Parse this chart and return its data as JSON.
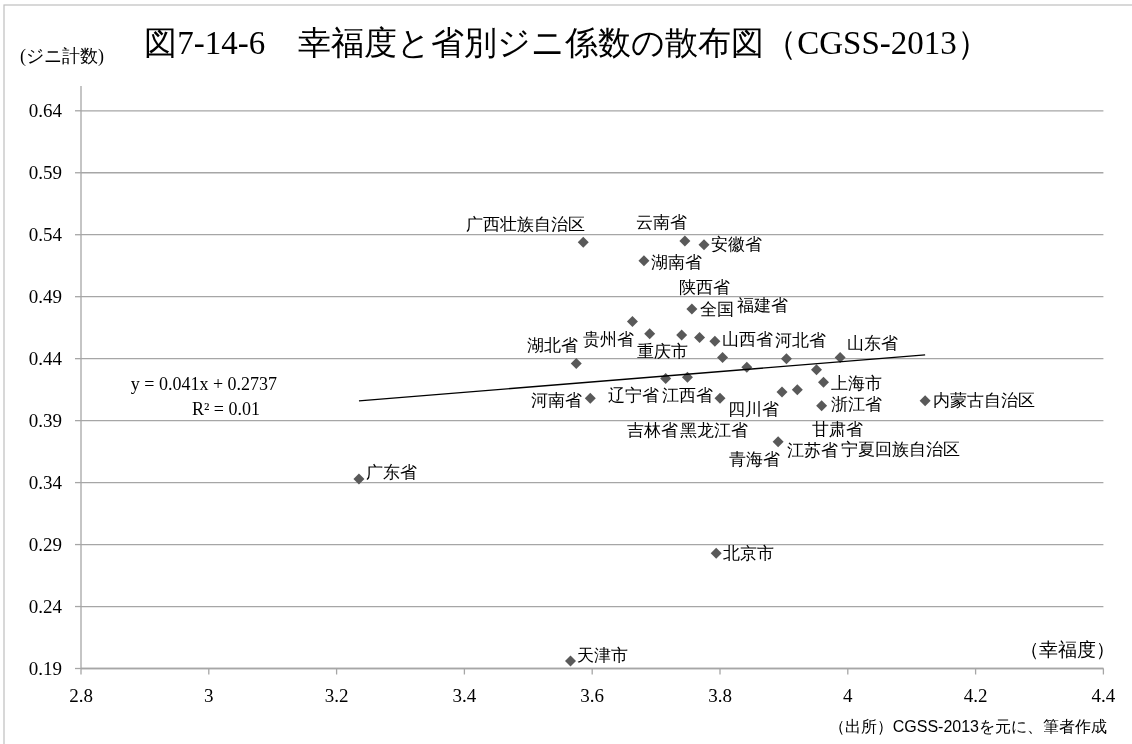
{
  "chart_data": {
    "type": "scatter",
    "title": "図7-14-6　幸福度と省別ジニ係数の散布図（CGSS-2013）",
    "xlabel": "（幸福度）",
    "ylabel": "(ジニ計数)",
    "xlim": [
      2.8,
      4.4
    ],
    "ylim": [
      0.19,
      0.66
    ],
    "xticks": [
      2.8,
      3,
      3.2,
      3.4,
      3.6,
      3.8,
      4,
      4.2,
      4.4
    ],
    "yticks": [
      0.19,
      0.24,
      0.29,
      0.34,
      0.39,
      0.44,
      0.49,
      0.54,
      0.59,
      0.64
    ],
    "grid": "y",
    "marker": "diamond",
    "series": [
      {
        "type": "scatter",
        "color": "#595959",
        "x": [
          3.586,
          3.745,
          3.775,
          3.681,
          3.663,
          3.756,
          3.69,
          3.792,
          3.74,
          3.768,
          3.904,
          3.988,
          3.575,
          3.804,
          3.749,
          3.842,
          3.951,
          3.921,
          3.962,
          4.121,
          3.597,
          3.715,
          3.8,
          3.897,
          3.959,
          3.891,
          3.235,
          3.794,
          3.566
        ],
        "values": [
          0.534,
          0.535,
          0.532,
          0.519,
          0.47,
          0.48,
          0.46,
          0.454,
          0.459,
          0.457,
          0.44,
          0.441,
          0.436,
          0.441,
          0.425,
          0.433,
          0.431,
          0.415,
          0.421,
          0.406,
          0.408,
          0.424,
          0.408,
          0.413,
          0.402,
          0.373,
          0.343,
          0.283,
          0.196
        ]
      },
      {
        "type": "line",
        "color": "#000000",
        "marker": "none",
        "x": [
          3.235,
          4.121
        ],
        "values": [
          0.406,
          0.443
        ]
      }
    ],
    "annotations": [
      {
        "text": "广西壮族自治区",
        "x": 3.586,
        "y": 0.534
      },
      {
        "text": "云南省",
        "x": 3.745,
        "y": 0.535
      },
      {
        "text": "安徽省",
        "x": 3.775,
        "y": 0.532
      },
      {
        "text": "湖南省",
        "x": 3.681,
        "y": 0.519
      },
      {
        "text": "贵州省",
        "x": 3.663,
        "y": 0.47
      },
      {
        "text": "全国",
        "x": 3.756,
        "y": 0.48
      },
      {
        "text": "重庆市",
        "x": 3.69,
        "y": 0.46
      },
      {
        "text": "山西省",
        "x": 3.792,
        "y": 0.454
      },
      {
        "text": "陕西省",
        "x": 3.74,
        "y": 0.459
      },
      {
        "text": "福建省",
        "x": 3.768,
        "y": 0.457
      },
      {
        "text": "河北省",
        "x": 3.904,
        "y": 0.44
      },
      {
        "text": "山东省",
        "x": 3.988,
        "y": 0.441
      },
      {
        "text": "湖北省",
        "x": 3.575,
        "y": 0.436
      },
      {
        "text": "江西省",
        "x": 3.804,
        "y": 0.441
      },
      {
        "text": "辽宁省",
        "x": 3.749,
        "y": 0.425
      },
      {
        "text": "四川省",
        "x": 3.842,
        "y": 0.433
      },
      {
        "text": "上海市",
        "x": 3.951,
        "y": 0.431
      },
      {
        "text": "甘肃省",
        "x": 3.921,
        "y": 0.415
      },
      {
        "text": "浙江省",
        "x": 3.962,
        "y": 0.421
      },
      {
        "text": "内蒙古自治区",
        "x": 4.121,
        "y": 0.406
      },
      {
        "text": "河南省",
        "x": 3.597,
        "y": 0.408
      },
      {
        "text": "吉林省",
        "x": 3.715,
        "y": 0.424
      },
      {
        "text": "黑龙江省",
        "x": 3.8,
        "y": 0.408
      },
      {
        "text": "江苏省",
        "x": 3.897,
        "y": 0.413
      },
      {
        "text": "宁夏回族自治区",
        "x": 3.959,
        "y": 0.402
      },
      {
        "text": "青海省",
        "x": 3.891,
        "y": 0.373
      },
      {
        "text": "广东省",
        "x": 3.235,
        "y": 0.343
      },
      {
        "text": "北京市",
        "x": 3.794,
        "y": 0.283
      },
      {
        "text": "天津市",
        "x": 3.566,
        "y": 0.196
      },
      "y = 0.041x + 0.2737",
      "R² = 0.01",
      "（出所）CGSS-2013を元に、筆者作成"
    ]
  }
}
